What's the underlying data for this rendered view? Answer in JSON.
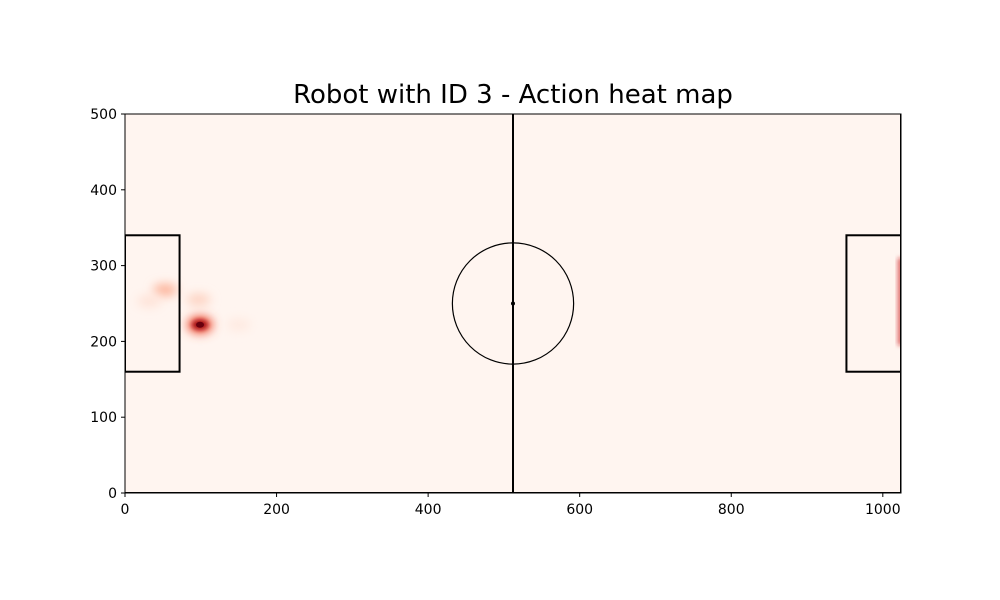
{
  "chart_data": {
    "type": "heatmap",
    "title": "Robot with ID 3 - Action heat map",
    "xlabel": "",
    "ylabel": "",
    "xlim": [
      0,
      1024
    ],
    "ylim": [
      0,
      500
    ],
    "x_ticks": [
      0,
      200,
      400,
      600,
      800,
      1000
    ],
    "y_ticks": [
      0,
      100,
      200,
      300,
      400,
      500
    ],
    "grid": false,
    "colormap": "Reds",
    "background_color": "#fff5f0",
    "field": {
      "center_line_x": 512,
      "center_circle": {
        "cx": 512,
        "cy": 250,
        "r": 80
      },
      "center_spot": {
        "x": 512,
        "y": 250
      },
      "left_penalty_box": {
        "x0": 0,
        "x1": 72,
        "y0": 160,
        "y1": 340
      },
      "right_penalty_box": {
        "x0": 952,
        "x1": 1024,
        "y0": 160,
        "y1": 340
      }
    },
    "hotspots": [
      {
        "x": 99,
        "y": 222,
        "intensity": 1.0
      },
      {
        "x": 53,
        "y": 268,
        "intensity": 0.28
      },
      {
        "x": 97,
        "y": 255,
        "intensity": 0.15
      },
      {
        "x": 32,
        "y": 253,
        "intensity": 0.08
      },
      {
        "x": 150,
        "y": 222,
        "intensity": 0.05
      },
      {
        "x": 1022,
        "y": 250,
        "intensity": 0.45
      }
    ]
  }
}
